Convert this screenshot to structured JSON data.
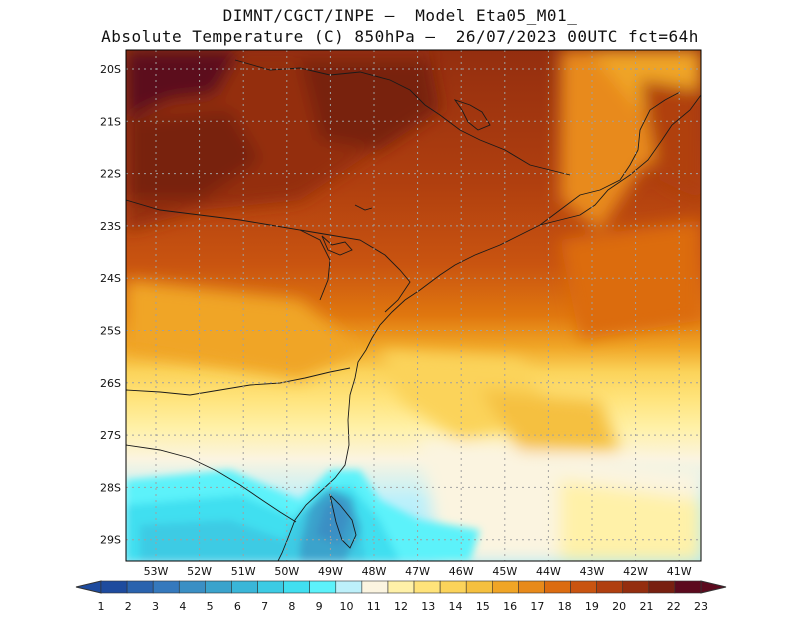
{
  "title": {
    "line1": "DIMNT/CGCT/INPE –  Model Eta05_M01_",
    "line2": "Absolute Temperature (C) 850hPa –  26/07/2023 00UTC fct=64h"
  },
  "map": {
    "lat_labels": [
      "20S",
      "21S",
      "22S",
      "23S",
      "24S",
      "25S",
      "26S",
      "27S",
      "28S",
      "29S"
    ],
    "lon_labels": [
      "53W",
      "52W",
      "51W",
      "50W",
      "49W",
      "48W",
      "47W",
      "46W",
      "45W",
      "44W",
      "43W",
      "42W",
      "41W"
    ]
  },
  "colorbar": {
    "values": [
      "1",
      "2",
      "3",
      "4",
      "5",
      "6",
      "7",
      "8",
      "9",
      "10",
      "11",
      "12",
      "13",
      "14",
      "15",
      "16",
      "17",
      "18",
      "19",
      "20",
      "21",
      "22",
      "23"
    ],
    "colors": [
      "#1e4b9e",
      "#2a63ae",
      "#3579bd",
      "#3a8fc4",
      "#3aa3cc",
      "#3ab6d8",
      "#3ccbe4",
      "#41dff0",
      "#5cf2fa",
      "#bdf0fa",
      "#fbf4e0",
      "#fff1a8",
      "#ffe37a",
      "#fbd35a",
      "#f5c03f",
      "#f0a526",
      "#e88a1a",
      "#dc6c10",
      "#c95410",
      "#b03f0f",
      "#942e0f",
      "#782010",
      "#5c0a1e"
    ]
  },
  "colors": {
    "border": "#000000",
    "grid": "#a0a0a0",
    "coast": "#1a1a1a"
  }
}
